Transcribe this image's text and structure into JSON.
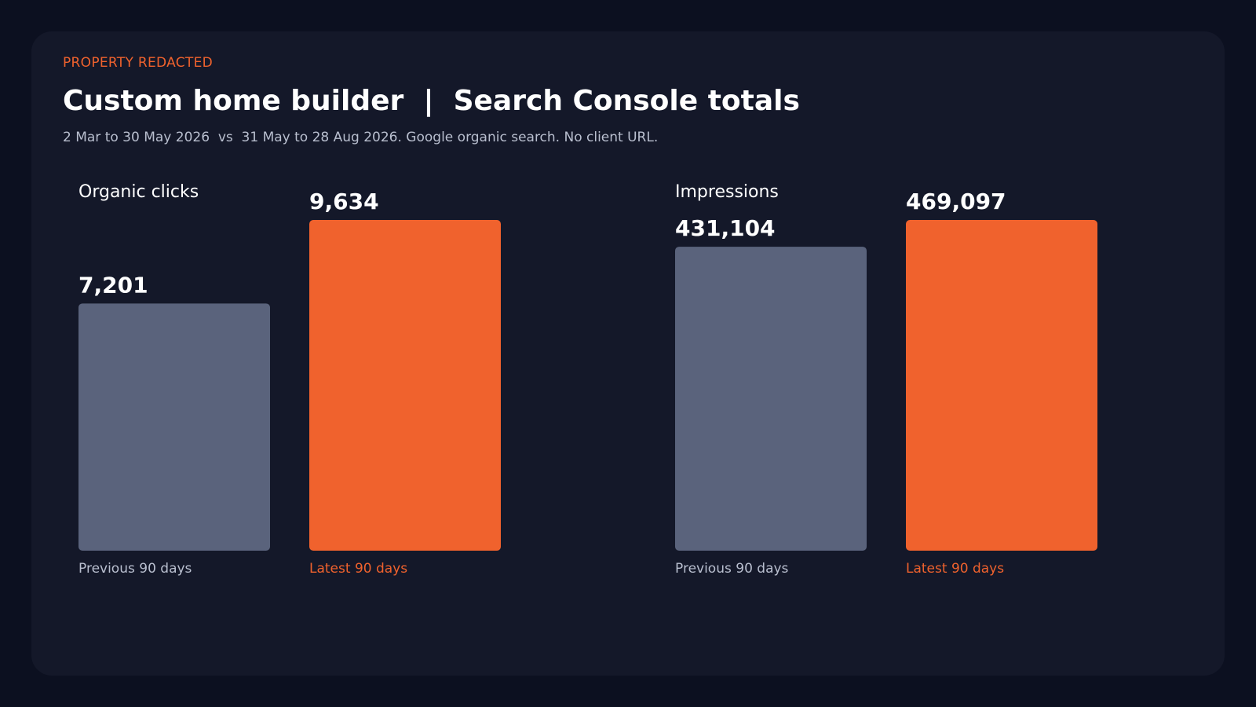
{
  "header": {
    "eyebrow": "PROPERTY REDACTED",
    "title": "Custom home builder  |  Search Console totals",
    "subtitle": "2 Mar to 30 May 2026  vs  31 May to 28 Aug 2026. Google organic search. No client URL."
  },
  "colors": {
    "background": "#0c1020",
    "card": "#141829",
    "previous": "#5a637c",
    "latest": "#f0622d",
    "previous_label": "#b9bfcf",
    "latest_label": "#f0622d",
    "value_text": "#ffffff"
  },
  "chart_data": [
    {
      "type": "bar",
      "title": "Organic clicks",
      "categories": [
        "Previous 90 days",
        "Latest 90 days"
      ],
      "values": [
        7201,
        9634
      ],
      "value_labels": [
        "7,201",
        "9,634"
      ]
    },
    {
      "type": "bar",
      "title": "Impressions",
      "categories": [
        "Previous 90 days",
        "Latest 90 days"
      ],
      "values": [
        431104,
        469097
      ],
      "value_labels": [
        "431,104",
        "469,097"
      ]
    }
  ]
}
